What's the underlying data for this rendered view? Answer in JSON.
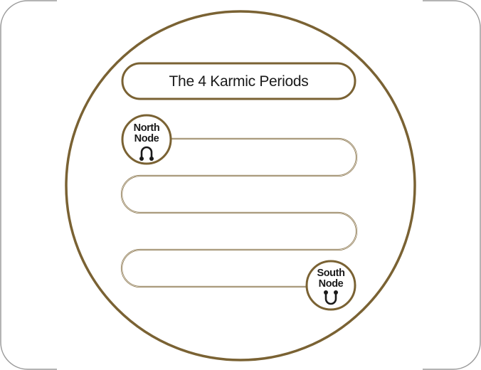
{
  "diagram": {
    "title": "The 4 Karmic Periods",
    "start_node": {
      "line1": "North",
      "line2": "Node",
      "icon": "north-node-glyph"
    },
    "end_node": {
      "line1": "South",
      "line2": "Node",
      "icon": "south-node-glyph"
    },
    "colors": {
      "frame": "#7a6233",
      "text": "#1a1a1a",
      "panel_border": "#9b9b9b"
    }
  }
}
